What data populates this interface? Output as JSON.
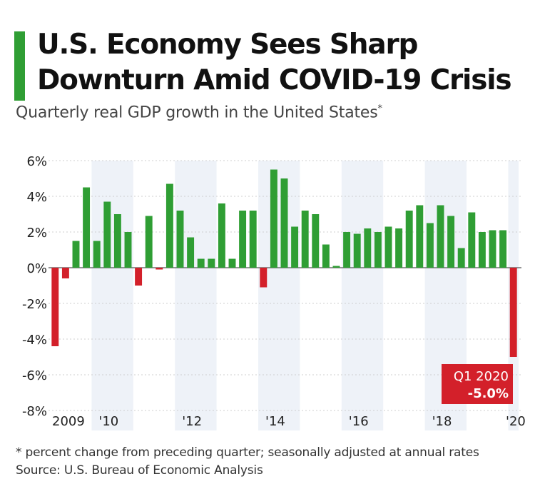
{
  "title": "U.S. Economy Sees Sharp Downturn Amid COVID-19 Crisis",
  "subtitle": "Quarterly real GDP growth in the United States",
  "subtitle_marker": "*",
  "footnote": "* percent change from preceding quarter; seasonally adjusted at annual rates",
  "source": "Source: U.S. Bureau of Economic Analysis",
  "colors": {
    "accent": "#2f9e34",
    "positive": "#2f9e34",
    "negative": "#d3202a",
    "year_band": "#eef2f8",
    "callout": "#d3202a"
  },
  "chart_data": {
    "type": "bar",
    "ylim": [
      -8,
      6
    ],
    "y_ticks": [
      "6%",
      "4%",
      "2%",
      "0%",
      "-2%",
      "-4%",
      "-6%",
      "-8%"
    ],
    "x_tick_labels": [
      "2009",
      "'10",
      "'12",
      "'14",
      "'16",
      "'18",
      "'20"
    ],
    "grid": true,
    "start": "Q1 2009",
    "end": "Q1 2020",
    "values": [
      -4.4,
      -0.6,
      1.5,
      4.5,
      1.5,
      3.7,
      3.0,
      2.0,
      -1.0,
      2.9,
      -0.1,
      4.7,
      3.2,
      1.7,
      0.5,
      0.5,
      3.6,
      0.5,
      3.2,
      3.2,
      -1.1,
      5.5,
      5.0,
      2.3,
      3.2,
      3.0,
      1.3,
      0.1,
      2.0,
      1.9,
      2.2,
      2.0,
      2.3,
      2.2,
      3.2,
      3.5,
      2.5,
      3.5,
      2.9,
      1.1,
      3.1,
      2.0,
      2.1,
      2.1,
      -5.0
    ],
    "annotation": {
      "label": "Q1 2020",
      "value": "-5.0%"
    }
  }
}
